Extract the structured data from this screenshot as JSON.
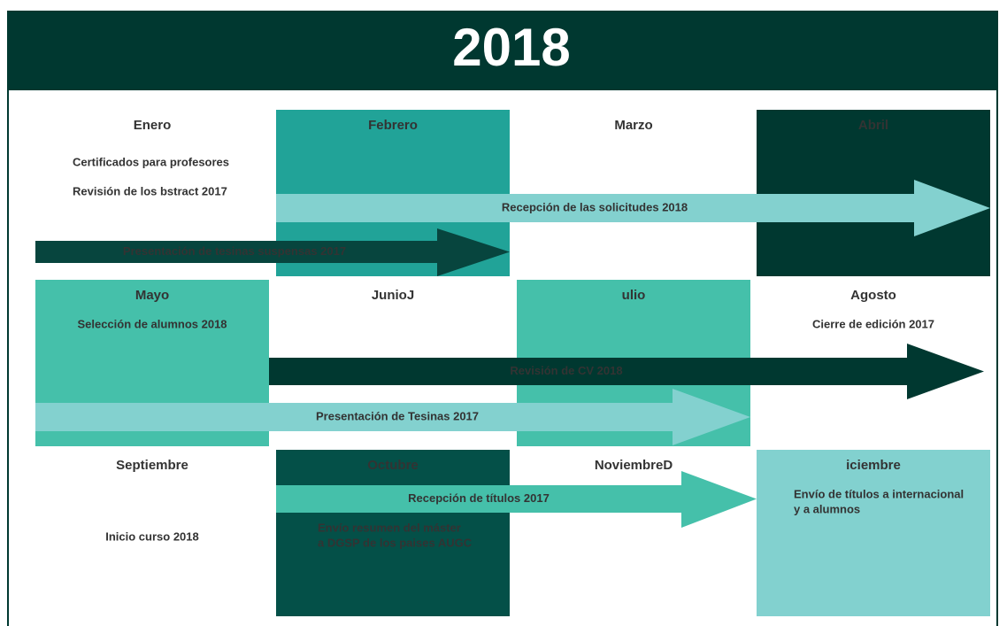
{
  "header": {
    "title": "2018"
  },
  "months": [
    {
      "label": "Enero"
    },
    {
      "label": "Febrero"
    },
    {
      "label": "Marzo"
    },
    {
      "label": "Abril"
    },
    {
      "label": "Mayo"
    },
    {
      "label": "JunioJ"
    },
    {
      "label": "ulio"
    },
    {
      "label": "Agosto"
    },
    {
      "label": "Septiembre"
    },
    {
      "label": "Octubre"
    },
    {
      "label": "NoviembreD"
    },
    {
      "label": "iciembre"
    }
  ],
  "notes": [
    {
      "lines": [
        "Certificados para profesores"
      ]
    },
    {
      "lines": [
        "Revisión de los   bstract 2017"
      ]
    },
    {
      "lines": [
        "Selección de alumnos 2018"
      ]
    },
    {
      "lines": [
        "Cierre de edición 2017"
      ]
    },
    {
      "lines": [
        "Inicio curso 2018"
      ]
    },
    {
      "lines": [
        "Envío resumen del máster",
        "a DGSP de los paises AUGC"
      ]
    },
    {
      "lines": [
        "Envío de títulos a internacional",
        "y a alumnos"
      ]
    }
  ],
  "arrows": [
    {
      "label": "Recepción de las solicitudes 2018"
    },
    {
      "label": "Presentación de tesinas suspensas 2017"
    },
    {
      "label": "Revisión de CV 2018"
    },
    {
      "label": "Presentación de Tesinas 2017"
    },
    {
      "label": "Recepción de títulos 2017"
    }
  ]
}
